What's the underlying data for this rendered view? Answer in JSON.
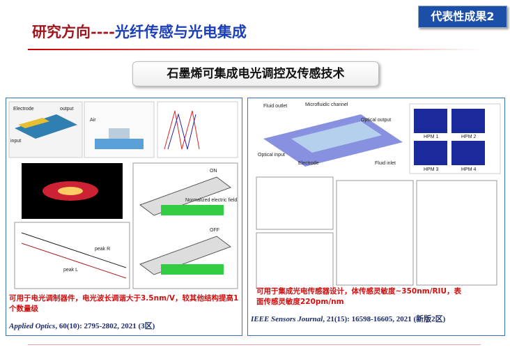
{
  "header": {
    "title_part1": "研究方向----",
    "title_part2": "光纤传感与光电集成",
    "badge": "代表性成果2"
  },
  "banner": "石墨烯可集成电光调控及传感技术",
  "left": {
    "figure_labels": [
      "Electrode",
      "output",
      "input",
      "Air",
      "ON",
      "OFF",
      "peak R",
      "peak L",
      "Normalized electric field"
    ],
    "description": "可用于电光调制器件，电光波长调谐大于3.5nm/V，较其他结构提高1个数量级",
    "citation_journal": "Applied Optics",
    "citation_rest": ", 60(10): 2795-2802, 2021 (3区)"
  },
  "right": {
    "figure_labels": [
      "Fluid outlet",
      "Microfluidic channel",
      "Optical output",
      "Optical input",
      "Electrode",
      "Fluid inlet",
      "HPM 1",
      "HPM 2",
      "HPM 3",
      "HPM 4"
    ],
    "description": "可用于集成光电传感器设计，体传感灵敏度~350nm/RIU，表面传感灵敏度220pm/nm",
    "citation_journal": "IEEE Sensors Journal",
    "citation_rest": ", 21(15): 16598-16605, 2021 (新版2区)"
  }
}
